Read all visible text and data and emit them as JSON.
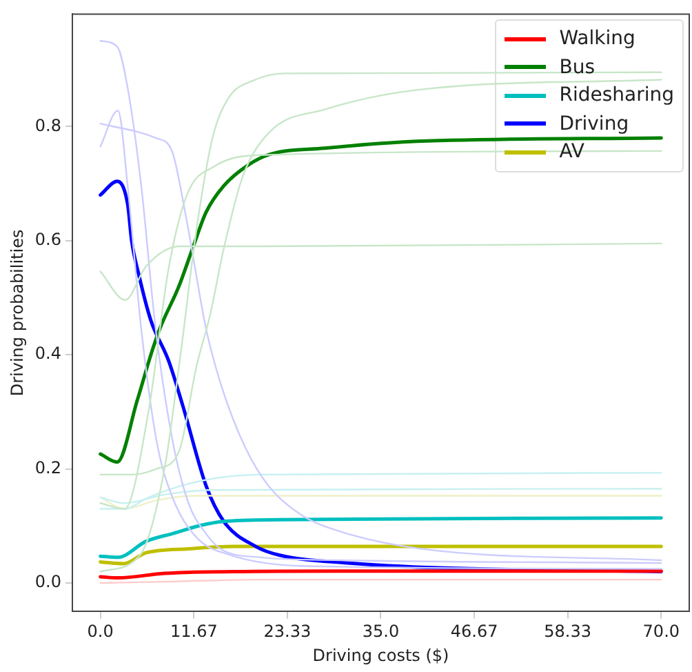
{
  "chart_data": {
    "type": "line",
    "xlabel": "Driving costs ($)",
    "ylabel": "Driving probabilities",
    "xlim": [
      -3.5,
      73.5
    ],
    "ylim": [
      -0.05,
      0.997
    ],
    "xticks": [
      {
        "value": 0,
        "label": "0.0"
      },
      11.67,
      23.33,
      {
        "value": 35,
        "label": "35.0"
      },
      46.67,
      58.33,
      {
        "value": 70,
        "label": "70.0"
      }
    ],
    "yticks": [
      {
        "value": 0,
        "label": "0.0"
      },
      0.2,
      0.4,
      0.6,
      0.8
    ],
    "legend": "top right",
    "grid": false,
    "marker": "none",
    "line_style": "solid",
    "series": [
      {
        "color": "#c8e6c8",
        "x": [
          0,
          5,
          8,
          10,
          12,
          14,
          16,
          19,
          23,
          70
        ],
        "values": [
          0.02,
          0.05,
          0.2,
          0.4,
          0.62,
          0.78,
          0.85,
          0.88,
          0.893,
          0.895
        ]
      },
      {
        "color": "#c8e6c8",
        "x": [
          0,
          4,
          7,
          9.8,
          12,
          13.7,
          15.4,
          17.7,
          21.1,
          28,
          39.5,
          70
        ],
        "values": [
          0.19,
          0.19,
          0.2,
          0.23,
          0.38,
          0.47,
          0.586,
          0.71,
          0.79,
          0.83,
          0.864,
          0.882
        ]
      },
      {
        "color": "#c8e6c8",
        "x": [
          0,
          3.1,
          5.7,
          9.8,
          20,
          70
        ],
        "values": [
          0.546,
          0.496,
          0.555,
          0.59,
          0.59,
          0.595
        ]
      },
      {
        "color": "#c8e6c8",
        "x": [
          0,
          3,
          6,
          8.5,
          10.8,
          14.2,
          20,
          70
        ],
        "values": [
          0.14,
          0.13,
          0.3,
          0.55,
          0.68,
          0.73,
          0.75,
          0.757
        ]
      },
      {
        "color": "#ccccff",
        "x": [
          0,
          2.1,
          3.4,
          5.1,
          6.9,
          9,
          11,
          13,
          15,
          20,
          30,
          70
        ],
        "values": [
          0.95,
          0.94,
          0.868,
          0.696,
          0.445,
          0.25,
          0.14,
          0.09,
          0.06,
          0.045,
          0.04,
          0.035
        ]
      },
      {
        "color": "#ccccff",
        "x": [
          0,
          6.9,
          8.9,
          10.8,
          13.2,
          15,
          18,
          21,
          25,
          30,
          40,
          70
        ],
        "values": [
          0.805,
          0.78,
          0.758,
          0.633,
          0.445,
          0.35,
          0.24,
          0.17,
          0.12,
          0.09,
          0.06,
          0.04
        ]
      },
      {
        "color": "#ccccff",
        "x": [
          0,
          2.2,
          3.4,
          5.1,
          7,
          9,
          12,
          16,
          25,
          70
        ],
        "values": [
          0.765,
          0.828,
          0.696,
          0.445,
          0.25,
          0.15,
          0.08,
          0.05,
          0.03,
          0.025
        ]
      },
      {
        "color": "#c8f0f0",
        "x": [
          0,
          3,
          6,
          10,
          15,
          20,
          70
        ],
        "values": [
          0.13,
          0.13,
          0.15,
          0.17,
          0.185,
          0.19,
          0.193
        ]
      },
      {
        "color": "#c8f0f0",
        "x": [
          0,
          3,
          8,
          14,
          70
        ],
        "values": [
          0.15,
          0.14,
          0.155,
          0.163,
          0.165
        ]
      },
      {
        "color": "#f0f0c8",
        "x": [
          0,
          3,
          7,
          12,
          70
        ],
        "values": [
          0.15,
          0.13,
          0.145,
          0.153,
          0.153
        ]
      },
      {
        "color": "#ffcccc",
        "x": [
          0,
          10,
          20,
          70
        ],
        "values": [
          0.0,
          0.003,
          0.006,
          0.006
        ]
      },
      {
        "name": "Walking",
        "color": "#ff0000",
        "x": [
          0,
          2.2,
          8,
          16.6,
          30,
          70
        ],
        "values": [
          0.011,
          0.009,
          0.017,
          0.02,
          0.021,
          0.021
        ]
      },
      {
        "name": "Bus",
        "color": "#008000",
        "x": [
          0,
          2.1,
          4.6,
          6.3,
          7.4,
          9.8,
          11.5,
          13.2,
          15.4,
          18.4,
          21.1,
          28,
          39.5,
          70
        ],
        "values": [
          0.226,
          0.212,
          0.32,
          0.4,
          0.445,
          0.52,
          0.586,
          0.65,
          0.696,
          0.732,
          0.751,
          0.762,
          0.774,
          0.78
        ]
      },
      {
        "name": "Ridesharing",
        "color": "#00bfbf",
        "x": [
          0,
          2.2,
          5.7,
          9.1,
          12.5,
          15.4,
          22.3,
          70
        ],
        "values": [
          0.047,
          0.045,
          0.073,
          0.087,
          0.101,
          0.108,
          0.111,
          0.114
        ]
      },
      {
        "name": "Driving",
        "color": "#0000ff",
        "x": [
          0,
          2.1,
          3.4,
          3.9,
          4.8,
          6.3,
          8.5,
          10.3,
          13.2,
          15.4,
          19.4,
          22.3,
          30.9,
          39.5,
          70
        ],
        "values": [
          0.68,
          0.704,
          0.664,
          0.6,
          0.54,
          0.46,
          0.39,
          0.31,
          0.17,
          0.108,
          0.064,
          0.049,
          0.035,
          0.028,
          0.02
        ]
      },
      {
        "name": "AV",
        "color": "#bfbf00",
        "x": [
          0,
          2.9,
          5.7,
          11,
          16.6,
          70
        ],
        "values": [
          0.037,
          0.034,
          0.053,
          0.06,
          0.064,
          0.064
        ]
      }
    ]
  }
}
